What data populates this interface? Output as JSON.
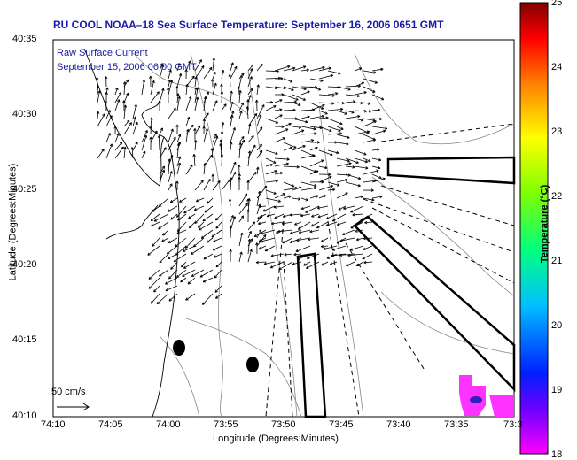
{
  "title": "RU COOL  NOAA–18  Sea Surface Temperature:  September 16, 2006 0651 GMT",
  "legend": {
    "line1": "Raw Surface Current",
    "line2": "September 15, 2006 06:00 GMT"
  },
  "scale": {
    "label": "50 cm/s"
  },
  "axes": {
    "xlabel": "Longitude (Degrees:Minutes)",
    "ylabel": "Latitude (Degrees:Minutes)",
    "xticks": [
      "74:10",
      "74:05",
      "74:00",
      "73:55",
      "73:50",
      "73:45",
      "73:40",
      "73:35",
      "73:3"
    ],
    "yticks": [
      "40:35",
      "40:30",
      "40:25",
      "40:20",
      "40:15",
      "40:10"
    ]
  },
  "colorbar": {
    "label": "Temperature (°C)",
    "ticks": [
      "25",
      "24",
      "23",
      "22",
      "21",
      "20",
      "19",
      "18"
    ],
    "range": [
      18,
      25
    ],
    "colors": [
      "#ff00ff",
      "#6a00ff",
      "#0020ff",
      "#00c0ff",
      "#00ff80",
      "#80ff00",
      "#ffff00",
      "#ff8000",
      "#ff0000",
      "#800000"
    ]
  },
  "colors": {
    "title": "#1a1aa6",
    "coast": "#000000",
    "bathymetry": "#888888",
    "patch": "#ff33ff",
    "patch_core": "#3020c0"
  }
}
